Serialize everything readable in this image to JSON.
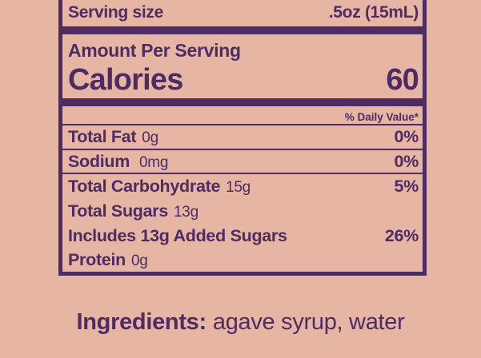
{
  "colors": {
    "ink": "#4e2c63",
    "bg": "#e6b5a4"
  },
  "label": {
    "serving_size_label": "Serving size",
    "serving_size_value": ".5oz (15mL)",
    "amount_per_serving": "Amount Per Serving",
    "calories_label": "Calories",
    "calories_value": "60",
    "daily_value_header": "% Daily Value*",
    "rows": [
      {
        "name": "Total Fat",
        "amount": "0g",
        "dv": "0%"
      },
      {
        "name": "Sodium",
        "amount": "0mg",
        "dv": "0%"
      },
      {
        "name": "Total Carbohydrate",
        "amount": "15g",
        "dv": "5%"
      },
      {
        "name": "Total Sugars",
        "amount": "13g",
        "dv": ""
      },
      {
        "name": "Includes 13g Added Sugars",
        "amount": "",
        "dv": "26%"
      },
      {
        "name": "Protein",
        "amount": "0g",
        "dv": ""
      }
    ]
  },
  "ingredients": {
    "label": "Ingredients:",
    "value": "agave syrup, water"
  }
}
